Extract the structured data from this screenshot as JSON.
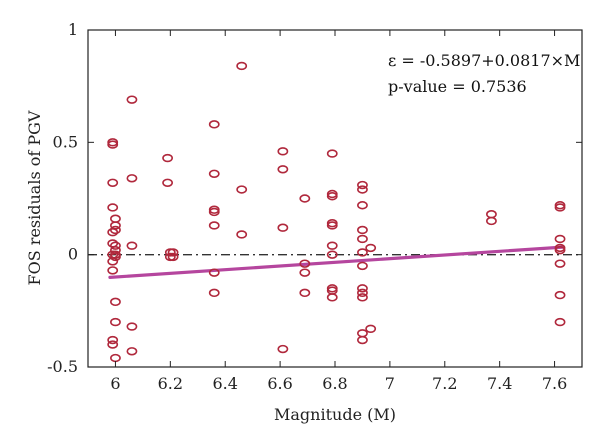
{
  "chart_data": {
    "type": "scatter",
    "xlabel": "Magnitude (M)",
    "ylabel": "FOS residuals of PGV",
    "xlim": [
      5.9,
      7.7
    ],
    "ylim": [
      -0.5,
      1.0
    ],
    "xticks": [
      6,
      6.2,
      6.4,
      6.6,
      6.8,
      7,
      7.2,
      7.4,
      7.6
    ],
    "xtick_labels": [
      "6",
      "6.2",
      "6.4",
      "6.6",
      "6.8",
      "7",
      "7.2",
      "7.4",
      "7.6"
    ],
    "yticks": [
      -0.5,
      0,
      0.5,
      1
    ],
    "ytick_labels": [
      "-0.5",
      "0",
      "0.5",
      "1"
    ],
    "grid": false,
    "zero_line": {
      "y": 0,
      "style": "dash-dot",
      "color": "#333333"
    },
    "annotations": {
      "equation": "ε = -0.5897+0.0817×M",
      "pvalue": "p-value = 0.7536"
    },
    "fit_line": {
      "intercept": -0.5897,
      "slope": 0.0817,
      "x_range": [
        5.98,
        7.63
      ],
      "color": "#b5469e"
    },
    "marker_color": "#b0283c",
    "points": [
      {
        "x": 5.99,
        "y": 0.5
      },
      {
        "x": 5.99,
        "y": 0.49
      },
      {
        "x": 5.99,
        "y": 0.32
      },
      {
        "x": 5.99,
        "y": 0.21
      },
      {
        "x": 5.99,
        "y": 0.1
      },
      {
        "x": 5.99,
        "y": 0.05
      },
      {
        "x": 5.99,
        "y": 0.0
      },
      {
        "x": 5.99,
        "y": -0.03
      },
      {
        "x": 5.99,
        "y": -0.07
      },
      {
        "x": 5.99,
        "y": -0.38
      },
      {
        "x": 5.99,
        "y": -0.4
      },
      {
        "x": 6.0,
        "y": 0.16
      },
      {
        "x": 6.0,
        "y": 0.13
      },
      {
        "x": 6.0,
        "y": 0.11
      },
      {
        "x": 6.0,
        "y": 0.04
      },
      {
        "x": 6.0,
        "y": 0.02
      },
      {
        "x": 6.0,
        "y": 0.0
      },
      {
        "x": 6.0,
        "y": -0.01
      },
      {
        "x": 6.0,
        "y": -0.21
      },
      {
        "x": 6.0,
        "y": -0.3
      },
      {
        "x": 6.0,
        "y": -0.46
      },
      {
        "x": 6.06,
        "y": 0.69
      },
      {
        "x": 6.06,
        "y": 0.34
      },
      {
        "x": 6.06,
        "y": 0.04
      },
      {
        "x": 6.06,
        "y": -0.32
      },
      {
        "x": 6.06,
        "y": -0.43
      },
      {
        "x": 6.19,
        "y": 0.43
      },
      {
        "x": 6.19,
        "y": 0.32
      },
      {
        "x": 6.2,
        "y": 0.01
      },
      {
        "x": 6.2,
        "y": -0.01
      },
      {
        "x": 6.21,
        "y": 0.01
      },
      {
        "x": 6.21,
        "y": -0.01
      },
      {
        "x": 6.36,
        "y": 0.58
      },
      {
        "x": 6.36,
        "y": 0.36
      },
      {
        "x": 6.36,
        "y": 0.2
      },
      {
        "x": 6.36,
        "y": 0.19
      },
      {
        "x": 6.36,
        "y": 0.13
      },
      {
        "x": 6.36,
        "y": -0.08
      },
      {
        "x": 6.36,
        "y": -0.17
      },
      {
        "x": 6.46,
        "y": 0.84
      },
      {
        "x": 6.46,
        "y": 0.29
      },
      {
        "x": 6.46,
        "y": 0.09
      },
      {
        "x": 6.61,
        "y": 0.46
      },
      {
        "x": 6.61,
        "y": 0.38
      },
      {
        "x": 6.61,
        "y": 0.12
      },
      {
        "x": 6.61,
        "y": -0.42
      },
      {
        "x": 6.69,
        "y": 0.25
      },
      {
        "x": 6.69,
        "y": -0.04
      },
      {
        "x": 6.69,
        "y": -0.08
      },
      {
        "x": 6.69,
        "y": -0.17
      },
      {
        "x": 6.79,
        "y": 0.45
      },
      {
        "x": 6.79,
        "y": 0.27
      },
      {
        "x": 6.79,
        "y": 0.26
      },
      {
        "x": 6.79,
        "y": 0.14
      },
      {
        "x": 6.79,
        "y": 0.13
      },
      {
        "x": 6.79,
        "y": 0.04
      },
      {
        "x": 6.79,
        "y": 0.0
      },
      {
        "x": 6.79,
        "y": -0.15
      },
      {
        "x": 6.79,
        "y": -0.16
      },
      {
        "x": 6.79,
        "y": -0.19
      },
      {
        "x": 6.9,
        "y": 0.31
      },
      {
        "x": 6.9,
        "y": 0.29
      },
      {
        "x": 6.9,
        "y": 0.22
      },
      {
        "x": 6.9,
        "y": 0.11
      },
      {
        "x": 6.9,
        "y": 0.07
      },
      {
        "x": 6.9,
        "y": 0.01
      },
      {
        "x": 6.9,
        "y": -0.05
      },
      {
        "x": 6.9,
        "y": -0.15
      },
      {
        "x": 6.9,
        "y": -0.17
      },
      {
        "x": 6.9,
        "y": -0.19
      },
      {
        "x": 6.9,
        "y": -0.35
      },
      {
        "x": 6.9,
        "y": -0.38
      },
      {
        "x": 6.93,
        "y": 0.03
      },
      {
        "x": 6.93,
        "y": -0.33
      },
      {
        "x": 7.37,
        "y": 0.18
      },
      {
        "x": 7.37,
        "y": 0.15
      },
      {
        "x": 7.62,
        "y": 0.22
      },
      {
        "x": 7.62,
        "y": 0.21
      },
      {
        "x": 7.62,
        "y": 0.07
      },
      {
        "x": 7.62,
        "y": 0.03
      },
      {
        "x": 7.62,
        "y": 0.02
      },
      {
        "x": 7.62,
        "y": -0.04
      },
      {
        "x": 7.62,
        "y": -0.18
      },
      {
        "x": 7.62,
        "y": -0.3
      }
    ]
  }
}
